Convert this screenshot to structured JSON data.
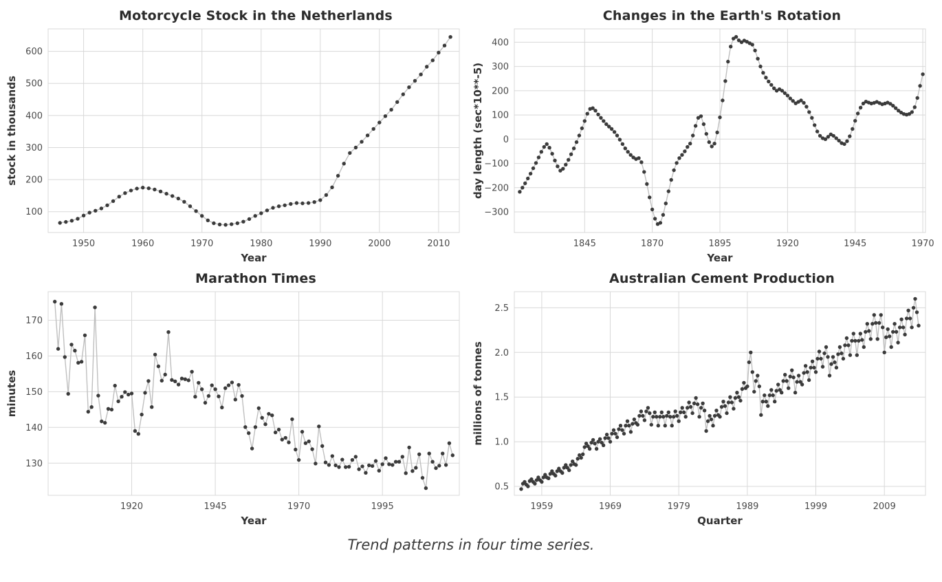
{
  "figure": {
    "caption": "Trend patterns in four time series."
  },
  "colors": {
    "marker": "#3b3b3b",
    "line": "#bfbfbf",
    "grid": "#d8d8d8",
    "title": "#2b2b2b",
    "tick": "#4a4a4a",
    "background": "#ffffff"
  },
  "chart_data": [
    {
      "type": "line",
      "title": "Motorcycle Stock in the Netherlands",
      "xlabel": "Year",
      "ylabel": "stock in thousands",
      "grid": true,
      "legend": false,
      "x_start": 1946,
      "x_step": 1,
      "xlim": [
        1944,
        2013.5
      ],
      "ylim": [
        35,
        670
      ],
      "xticks": [
        1950,
        1960,
        1970,
        1980,
        1990,
        2000,
        2010
      ],
      "xtick_labels": [
        "1950",
        "1960",
        "1970",
        "1980",
        "1990",
        "2000",
        "2010"
      ],
      "yticks": [
        100,
        200,
        300,
        400,
        500,
        600
      ],
      "ytick_labels": [
        "100",
        "200",
        "300",
        "400",
        "500",
        "600"
      ],
      "values": [
        65,
        68,
        72,
        78,
        88,
        97,
        103,
        110,
        120,
        133,
        147,
        158,
        166,
        172,
        175,
        173,
        169,
        163,
        156,
        149,
        141,
        131,
        117,
        102,
        87,
        73,
        64,
        60,
        59,
        61,
        64,
        69,
        77,
        87,
        95,
        104,
        112,
        117,
        120,
        124,
        127,
        126,
        127,
        130,
        136,
        152,
        176,
        212,
        250,
        283,
        300,
        318,
        338,
        358,
        378,
        398,
        418,
        442,
        466,
        488,
        508,
        528,
        552,
        572,
        596,
        618,
        645
      ]
    },
    {
      "type": "line",
      "title": "Changes in the Earth's Rotation",
      "xlabel": "Year",
      "ylabel": "day length (sec*10**-5)",
      "grid": true,
      "legend": false,
      "x_start": 1821,
      "x_step": 1,
      "xlim": [
        1819,
        1971
      ],
      "ylim": [
        -385,
        455
      ],
      "xticks": [
        1845,
        1870,
        1895,
        1920,
        1945,
        1970
      ],
      "xtick_labels": [
        "1845",
        "1870",
        "1895",
        "1920",
        "1945",
        "1970"
      ],
      "yticks": [
        -300,
        -200,
        -100,
        0,
        100,
        200,
        300,
        400
      ],
      "ytick_labels": [
        "−300",
        "−200",
        "−100",
        "0",
        "100",
        "200",
        "300",
        "400"
      ],
      "values": [
        -217,
        -200,
        -182,
        -162,
        -142,
        -120,
        -98,
        -75,
        -52,
        -32,
        -20,
        -35,
        -60,
        -88,
        -112,
        -130,
        -122,
        -105,
        -85,
        -62,
        -38,
        -12,
        15,
        45,
        75,
        105,
        125,
        128,
        118,
        102,
        88,
        75,
        62,
        52,
        42,
        30,
        15,
        -2,
        -20,
        -38,
        -52,
        -65,
        -75,
        -82,
        -78,
        -95,
        -135,
        -185,
        -240,
        -290,
        -328,
        -350,
        -345,
        -312,
        -265,
        -215,
        -168,
        -128,
        -98,
        -78,
        -65,
        -50,
        -32,
        -18,
        15,
        55,
        88,
        95,
        62,
        22,
        -12,
        -30,
        -18,
        28,
        90,
        160,
        240,
        320,
        382,
        415,
        422,
        408,
        400,
        407,
        402,
        396,
        390,
        366,
        332,
        300,
        274,
        254,
        238,
        224,
        210,
        200,
        206,
        200,
        190,
        180,
        168,
        158,
        148,
        154,
        160,
        150,
        134,
        112,
        88,
        58,
        32,
        14,
        4,
        0,
        10,
        20,
        14,
        4,
        -6,
        -16,
        -20,
        -8,
        12,
        42,
        76,
        106,
        130,
        147,
        155,
        151,
        147,
        150,
        154,
        149,
        144,
        147,
        151,
        146,
        138,
        128,
        118,
        110,
        104,
        101,
        104,
        112,
        132,
        170,
        220,
        268
      ]
    },
    {
      "type": "line",
      "title": "Marathon Times",
      "xlabel": "Year",
      "ylabel": "minutes",
      "grid": true,
      "legend": false,
      "x_start": 1897,
      "x_step": 1,
      "xlim": [
        1895,
        2018
      ],
      "ylim": [
        121,
        178
      ],
      "xticks": [
        1920,
        1945,
        1970,
        1995
      ],
      "xtick_labels": [
        "1920",
        "1945",
        "1970",
        "1995"
      ],
      "yticks": [
        130,
        140,
        150,
        160,
        170
      ],
      "ytick_labels": [
        "130",
        "140",
        "150",
        "160",
        "170"
      ],
      "values": [
        175.2,
        162,
        174.6,
        159.7,
        149.4,
        163.2,
        161.5,
        158.1,
        158.4,
        165.8,
        144.4,
        145.7,
        173.6,
        148.9,
        141.7,
        141.3,
        145.2,
        145,
        151.7,
        147.3,
        148.6,
        149.9,
        149.2,
        149.5,
        139,
        138.2,
        143.6,
        149.7,
        153,
        145.7,
        160.4,
        157.1,
        153.1,
        154.8,
        166.7,
        153.3,
        152.9,
        152,
        153.7,
        153.5,
        153.2,
        155.6,
        148.6,
        152.5,
        150.7,
        146.9,
        148.8,
        151.8,
        150.7,
        148.7,
        145.6,
        151,
        151.8,
        152.6,
        147.8,
        151.9,
        148.8,
        140.1,
        138.4,
        134.1,
        140.1,
        145.4,
        142.7,
        140.9,
        143.8,
        143.4,
        138.6,
        139.4,
        136.6,
        137.1,
        135.8,
        142.3,
        133.8,
        130.9,
        138.8,
        135.6,
        136.1,
        133.9,
        129.9,
        140.3,
        134.8,
        130.2,
        129.5,
        132,
        129.4,
        128.9,
        131,
        128.9,
        129,
        130.9,
        131.8,
        128.3,
        129.1,
        127.3,
        129.4,
        129.2,
        130.6,
        127.9,
        129.7,
        131.4,
        129.7,
        129.5,
        130.4,
        130.4,
        131.8,
        127.2,
        134.4,
        127.8,
        128.7,
        132.5,
        125.9,
        123,
        132.7,
        130.4,
        128.6,
        129.3,
        132.7,
        129.5,
        135.6,
        132.2
      ]
    },
    {
      "type": "line",
      "title": "Australian Cement Production",
      "xlabel": "Quarter",
      "ylabel": "millions of tonnes",
      "grid": true,
      "legend": false,
      "x_start": 1956,
      "x_step": 0.25,
      "xlim": [
        1955,
        2015
      ],
      "ylim": [
        0.4,
        2.68
      ],
      "xticks": [
        1959,
        1969,
        1979,
        1989,
        1999,
        2009
      ],
      "xtick_labels": [
        "1959",
        "1969",
        "1979",
        "1989",
        "1999",
        "2009"
      ],
      "yticks": [
        0.5,
        1.0,
        1.5,
        2.0,
        2.5
      ],
      "ytick_labels": [
        "0.5",
        "1.0",
        "1.5",
        "2.0",
        "2.5"
      ],
      "values": [
        0.47,
        0.53,
        0.55,
        0.52,
        0.5,
        0.56,
        0.58,
        0.55,
        0.53,
        0.57,
        0.6,
        0.57,
        0.55,
        0.6,
        0.63,
        0.6,
        0.59,
        0.64,
        0.67,
        0.64,
        0.62,
        0.67,
        0.7,
        0.67,
        0.65,
        0.71,
        0.74,
        0.71,
        0.68,
        0.74,
        0.78,
        0.75,
        0.74,
        0.81,
        0.85,
        0.82,
        0.86,
        0.94,
        0.98,
        0.95,
        0.92,
        0.99,
        1.02,
        0.98,
        0.92,
        1.0,
        1.03,
        0.99,
        0.96,
        1.04,
        1.08,
        1.04,
        1.0,
        1.09,
        1.13,
        1.09,
        1.05,
        1.14,
        1.18,
        1.13,
        1.09,
        1.18,
        1.23,
        1.18,
        1.11,
        1.2,
        1.25,
        1.21,
        1.19,
        1.29,
        1.34,
        1.29,
        1.24,
        1.34,
        1.38,
        1.32,
        1.19,
        1.28,
        1.33,
        1.28,
        1.18,
        1.28,
        1.33,
        1.28,
        1.18,
        1.29,
        1.33,
        1.28,
        1.18,
        1.28,
        1.34,
        1.29,
        1.23,
        1.33,
        1.38,
        1.33,
        1.28,
        1.38,
        1.44,
        1.39,
        1.32,
        1.43,
        1.49,
        1.42,
        1.28,
        1.38,
        1.43,
        1.35,
        1.12,
        1.23,
        1.29,
        1.25,
        1.18,
        1.29,
        1.35,
        1.3,
        1.28,
        1.39,
        1.45,
        1.4,
        1.32,
        1.44,
        1.5,
        1.44,
        1.37,
        1.49,
        1.55,
        1.5,
        1.46,
        1.59,
        1.66,
        1.6,
        1.62,
        1.89,
        2.0,
        1.78,
        1.56,
        1.68,
        1.74,
        1.62,
        1.3,
        1.45,
        1.52,
        1.45,
        1.4,
        1.52,
        1.58,
        1.52,
        1.45,
        1.57,
        1.64,
        1.58,
        1.55,
        1.68,
        1.75,
        1.68,
        1.6,
        1.73,
        1.8,
        1.72,
        1.55,
        1.67,
        1.74,
        1.67,
        1.64,
        1.77,
        1.85,
        1.78,
        1.69,
        1.83,
        1.9,
        1.83,
        1.78,
        1.93,
        2.01,
        1.93,
        1.84,
        1.99,
        2.06,
        1.95,
        1.74,
        1.87,
        1.95,
        1.89,
        1.83,
        1.98,
        2.06,
        1.99,
        1.93,
        2.08,
        2.16,
        2.08,
        1.97,
        2.13,
        2.21,
        2.13,
        1.97,
        2.13,
        2.21,
        2.14,
        2.06,
        2.23,
        2.32,
        2.24,
        2.15,
        2.32,
        2.42,
        2.33,
        2.15,
        2.33,
        2.42,
        2.28,
        2.0,
        2.17,
        2.26,
        2.18,
        2.06,
        2.23,
        2.32,
        2.23,
        2.11,
        2.28,
        2.37,
        2.28,
        2.2,
        2.38,
        2.47,
        2.38,
        2.28,
        2.5,
        2.6,
        2.45,
        2.3
      ]
    }
  ]
}
